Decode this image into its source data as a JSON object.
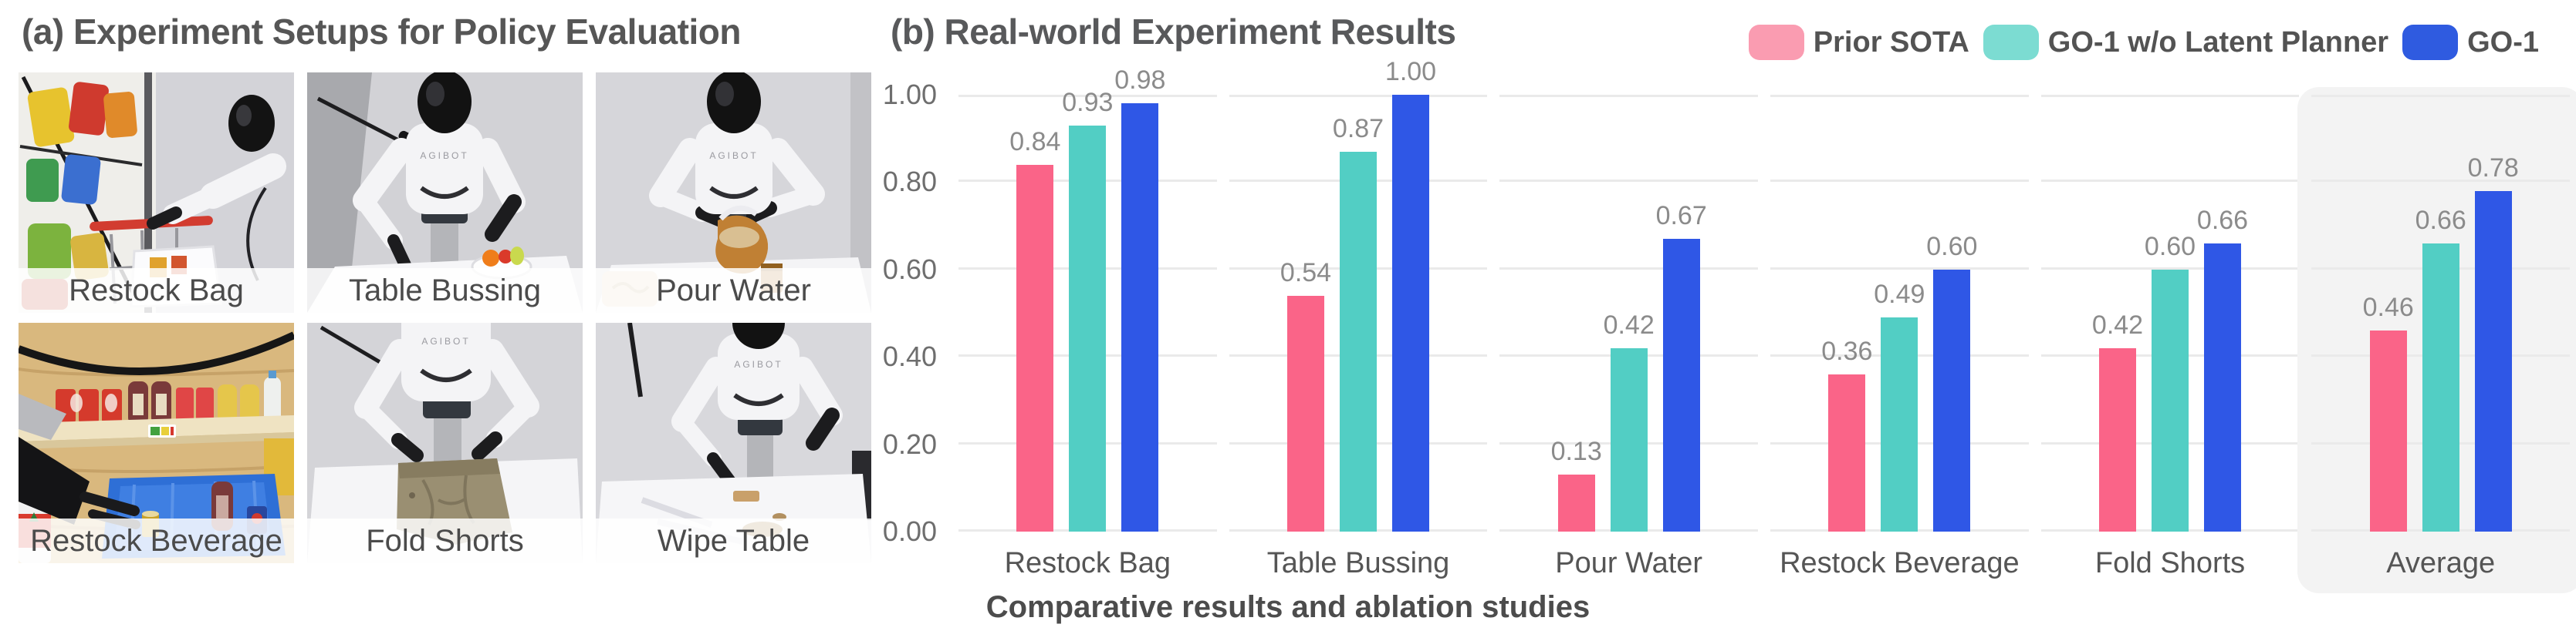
{
  "panel_a": {
    "title": "(a) Experiment Setups for Policy Evaluation",
    "robot_brand": "AGIBOT",
    "tiles": [
      {
        "label": "Restock Bag"
      },
      {
        "label": "Table Bussing"
      },
      {
        "label": "Pour Water"
      },
      {
        "label": "Restock Beverage"
      },
      {
        "label": "Fold Shorts"
      },
      {
        "label": "Wipe Table"
      }
    ]
  },
  "panel_b": {
    "title": "(b) Real-world Experiment Results",
    "legend": [
      {
        "label": "Prior SOTA",
        "color": "#FA9CB1"
      },
      {
        "label": "GO-1 w/o Latent Planner",
        "color": "#7CDCD2"
      },
      {
        "label": "GO-1",
        "color": "#2F5BE0"
      }
    ],
    "caption": "Comparative results and ablation studies"
  },
  "chart_data": {
    "type": "bar",
    "categories": [
      "Restock Bag",
      "Table Bussing",
      "Pour Water",
      "Restock Beverage",
      "Fold Shorts",
      "Average"
    ],
    "series": [
      {
        "name": "Prior SOTA",
        "color": "#FA6488",
        "values": [
          0.84,
          0.54,
          0.13,
          0.36,
          0.42,
          0.46
        ]
      },
      {
        "name": "GO-1 w/o Latent Planner",
        "color": "#52CEC4",
        "values": [
          0.93,
          0.87,
          0.42,
          0.49,
          0.6,
          0.66
        ]
      },
      {
        "name": "GO-1",
        "color": "#2F57E6",
        "values": [
          0.98,
          1.0,
          0.67,
          0.6,
          0.66,
          0.78
        ]
      }
    ],
    "yticks": [
      "0.00",
      "0.20",
      "0.40",
      "0.60",
      "0.80",
      "1.00"
    ],
    "ylim": [
      0,
      1.0
    ],
    "grid": true,
    "gridline_color": "#EAEAEA",
    "legend_position": "top-right",
    "highlight_category": "Average",
    "highlight_color": "#F3F3F3",
    "value_label_color": "#8B8B8B"
  }
}
